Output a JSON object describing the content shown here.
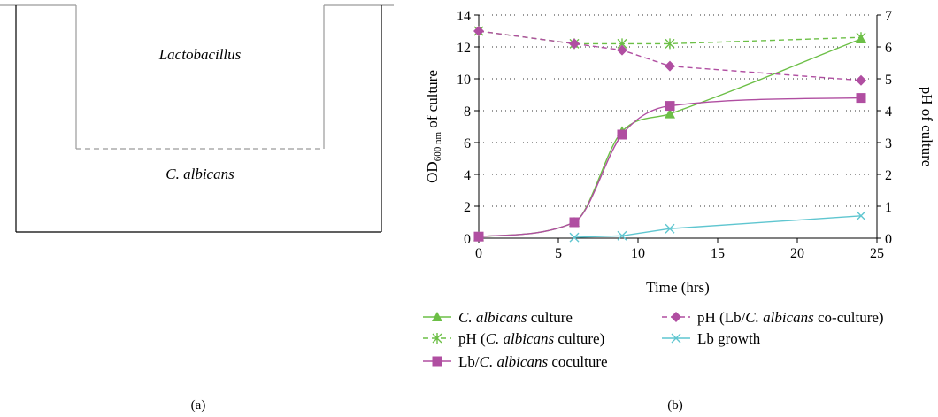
{
  "panel_labels": {
    "a": "(a)",
    "b": "(b)"
  },
  "panel_a": {
    "upper_label": "Lactobacillus",
    "lower_label": "C. albicans"
  },
  "chart_data": {
    "type": "line",
    "xlabel": "Time (hrs)",
    "ylabel_left": {
      "prefix": "OD",
      "subscript": "600 nm",
      "suffix": " of culture"
    },
    "ylabel_right": "pH of culture",
    "xlim": [
      0,
      25
    ],
    "ylim_left": [
      0,
      14
    ],
    "ylim_right": [
      0,
      7
    ],
    "xticks": [
      "0",
      "5",
      "10",
      "15",
      "20",
      "25"
    ],
    "yticks_left": [
      "0",
      "2",
      "4",
      "6",
      "8",
      "10",
      "12",
      "14"
    ],
    "yticks_right": [
      "0",
      "1",
      "2",
      "3",
      "4",
      "5",
      "6",
      "7"
    ],
    "grid": "horizontal dotted",
    "legend_position": "bottom",
    "series": [
      {
        "name_italic": "C. albicans",
        "name_rest": " culture",
        "axis": "left",
        "marker": "triangle",
        "dash": false,
        "smooth": true,
        "color": "#6cbf46",
        "points": [
          [
            0,
            0.1
          ],
          [
            6,
            1.0
          ],
          [
            9,
            6.7
          ],
          [
            12,
            7.8
          ],
          [
            24,
            12.5
          ]
        ]
      },
      {
        "name_pre": "pH (",
        "name_italic": "C. albicans",
        "name_rest": " culture)",
        "axis": "right",
        "marker": "asterisk",
        "dash": true,
        "smooth": false,
        "color": "#6cbf46",
        "points": [
          [
            0,
            6.5
          ],
          [
            6,
            6.1
          ],
          [
            9,
            6.1
          ],
          [
            12,
            6.1
          ],
          [
            24,
            6.3
          ]
        ]
      },
      {
        "name_pre": "Lb/",
        "name_italic": "C. albicans",
        "name_rest": " coculture",
        "axis": "left",
        "marker": "square",
        "dash": false,
        "smooth": true,
        "color": "#b04ea1",
        "points": [
          [
            0,
            0.1
          ],
          [
            6,
            1.0
          ],
          [
            9,
            6.5
          ],
          [
            12,
            8.3
          ],
          [
            24,
            8.8
          ]
        ]
      },
      {
        "name_pre": "pH (Lb/",
        "name_italic": "C. albicans",
        "name_rest": " co-culture)",
        "axis": "right",
        "marker": "diamond",
        "dash": true,
        "smooth": false,
        "color": "#b04ea1",
        "points": [
          [
            0,
            6.5
          ],
          [
            6,
            6.1
          ],
          [
            9,
            5.9
          ],
          [
            12,
            5.4
          ],
          [
            24,
            4.95
          ]
        ]
      },
      {
        "name_pre": "Lb growth",
        "axis": "left",
        "marker": "x",
        "dash": false,
        "smooth": false,
        "color": "#5fc6d0",
        "points": [
          [
            6,
            0.05
          ],
          [
            9,
            0.15
          ],
          [
            12,
            0.6
          ],
          [
            24,
            1.4
          ]
        ]
      }
    ]
  }
}
